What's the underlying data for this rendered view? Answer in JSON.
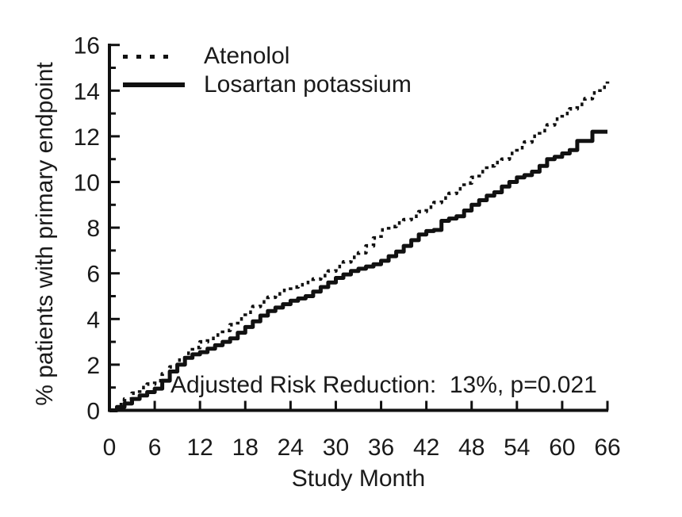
{
  "figure": {
    "background": "#ffffff",
    "text_color": "#1a1a1a",
    "line_color": "#111111"
  },
  "chart_data": {
    "type": "line",
    "subtype": "kaplan-meier-cumulative-incidence",
    "title": "",
    "xlabel": "Study Month",
    "ylabel": "% patients with primary endpoint",
    "annotation": "Adjusted Risk Reduction:  13%, p=0.021",
    "xlim": [
      0,
      66
    ],
    "ylim": [
      0,
      16
    ],
    "x_ticks": [
      0,
      6,
      12,
      18,
      24,
      30,
      36,
      42,
      48,
      54,
      60,
      66
    ],
    "y_ticks_major": [
      0,
      2,
      4,
      6,
      8,
      10,
      12,
      14,
      16
    ],
    "y_ticks_minor": [
      1,
      3,
      5,
      7,
      9,
      11,
      13,
      15
    ],
    "grid": false,
    "legend_position": "top-left-inside",
    "x": [
      0,
      1,
      2,
      3,
      4,
      5,
      6,
      7,
      8,
      9,
      10,
      11,
      12,
      13,
      14,
      15,
      16,
      17,
      18,
      19,
      20,
      21,
      22,
      23,
      24,
      25,
      26,
      27,
      28,
      29,
      30,
      31,
      32,
      33,
      34,
      35,
      36,
      37,
      38,
      39,
      40,
      41,
      42,
      43,
      44,
      45,
      46,
      47,
      48,
      49,
      50,
      51,
      52,
      53,
      54,
      55,
      56,
      57,
      58,
      59,
      60,
      61,
      62,
      63,
      64,
      65,
      66
    ],
    "series": [
      {
        "name": "Atenolol",
        "style": "dotted",
        "color": "#111111",
        "values": [
          0,
          0.25,
          0.5,
          0.75,
          1,
          1.15,
          1.3,
          1.6,
          1.9,
          2.2,
          2.5,
          2.75,
          3,
          3.15,
          3.3,
          3.5,
          3.75,
          4,
          4.3,
          4.55,
          4.75,
          4.95,
          5.1,
          5.25,
          5.4,
          5.5,
          5.6,
          5.75,
          5.9,
          6.1,
          6.3,
          6.5,
          6.7,
          6.9,
          7.2,
          7.55,
          7.9,
          8.05,
          8.2,
          8.35,
          8.5,
          8.7,
          8.9,
          9.1,
          9.3,
          9.5,
          9.7,
          9.95,
          10.2,
          10.45,
          10.7,
          10.85,
          11,
          11.25,
          11.5,
          11.75,
          12,
          12.25,
          12.5,
          12.75,
          13,
          13.2,
          13.4,
          13.65,
          13.9,
          14.15,
          14.4
        ]
      },
      {
        "name": "Losartan potassium",
        "style": "solid",
        "color": "#111111",
        "values": [
          0,
          0.15,
          0.3,
          0.5,
          0.65,
          0.8,
          0.95,
          1.3,
          1.7,
          2,
          2.3,
          2.45,
          2.55,
          2.7,
          2.85,
          3,
          3.15,
          3.4,
          3.65,
          3.9,
          4.15,
          4.35,
          4.5,
          4.65,
          4.8,
          4.9,
          5,
          5.2,
          5.4,
          5.6,
          5.8,
          5.95,
          6.1,
          6.2,
          6.3,
          6.4,
          6.55,
          6.75,
          6.95,
          7.2,
          7.45,
          7.7,
          7.85,
          7.9,
          8.3,
          8.4,
          8.5,
          8.75,
          9,
          9.2,
          9.4,
          9.55,
          9.8,
          10,
          10.2,
          10.3,
          10.45,
          10.7,
          11,
          11.1,
          11.25,
          11.4,
          11.8,
          11.8,
          12.2,
          12.2,
          12.2
        ]
      }
    ]
  }
}
